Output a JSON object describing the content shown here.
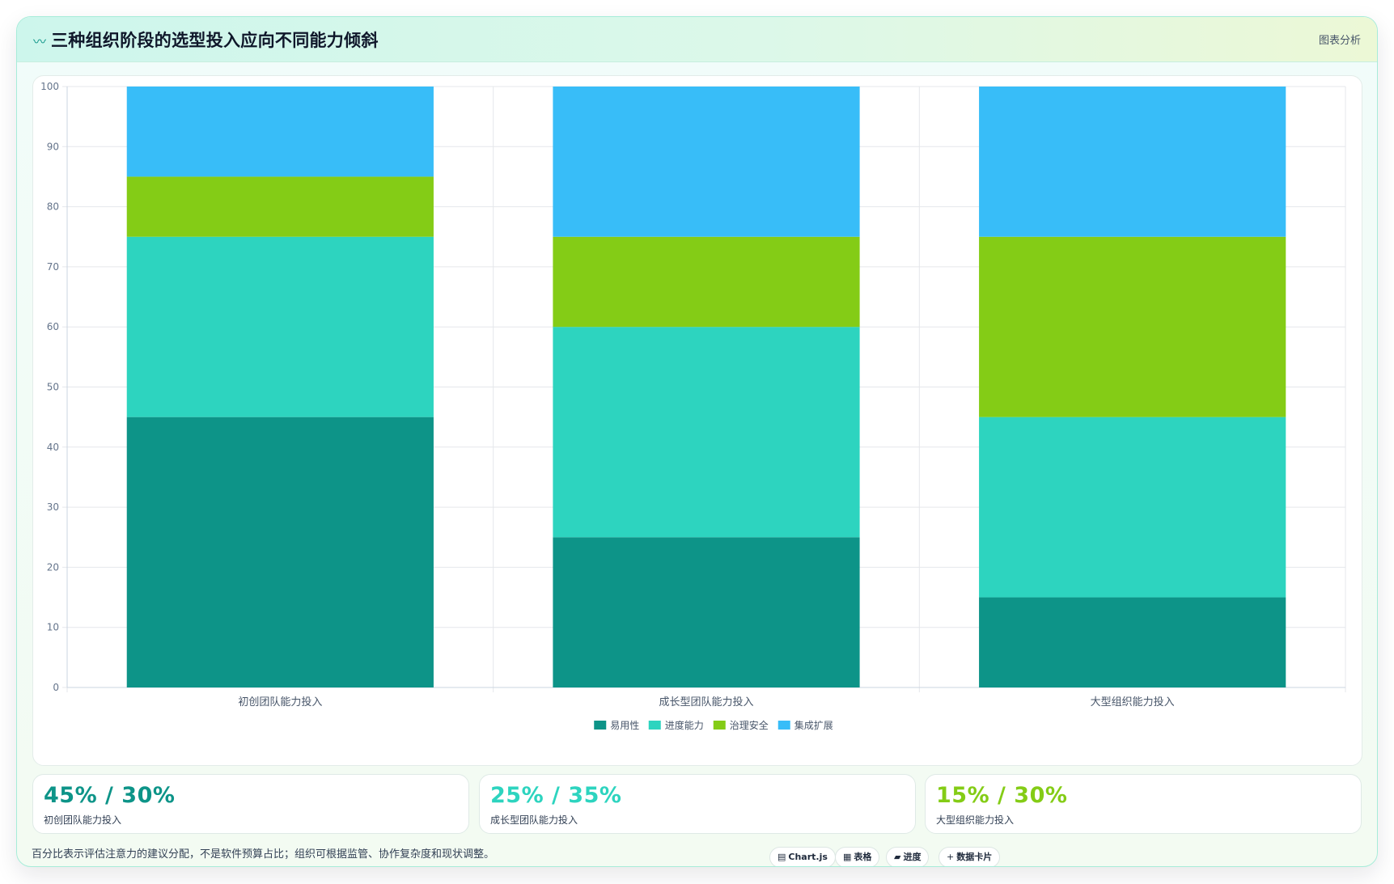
{
  "header": {
    "icon": "wave-icon",
    "title": "三种组织阶段的选型投入应向不同能力倾斜",
    "tag": "图表分析"
  },
  "chart_data": {
    "type": "bar",
    "stacked": true,
    "categories": [
      "初创团队能力投入",
      "成长型团队能力投入",
      "大型组织能力投入"
    ],
    "series": [
      {
        "name": "易用性",
        "color": "#0d9488",
        "values": [
          45,
          25,
          15
        ]
      },
      {
        "name": "进度能力",
        "color": "#2dd4bf",
        "values": [
          30,
          35,
          30
        ]
      },
      {
        "name": "治理安全",
        "color": "#84cc16",
        "values": [
          10,
          15,
          30
        ]
      },
      {
        "name": "集成扩展",
        "color": "#38bdf8",
        "values": [
          15,
          25,
          25
        ]
      }
    ],
    "ylim": [
      0,
      100
    ],
    "yticks": [
      0,
      10,
      20,
      30,
      40,
      50,
      60,
      70,
      80,
      90,
      100
    ],
    "grid": true,
    "legend": "bottom"
  },
  "stats": [
    {
      "value": "45% / 30%",
      "label": "初创团队能力投入",
      "color": "#0d9488"
    },
    {
      "value": "25% / 35%",
      "label": "成长型团队能力投入",
      "color": "#2dd4bf"
    },
    {
      "value": "15% / 30%",
      "label": "大型组织能力投入",
      "color": "#84cc16"
    }
  ],
  "footer": {
    "note": "百分比表示评估注意力的建议分配，不是软件预算占比；组织可根据监管、协作复杂度和现状调整。",
    "chips": [
      {
        "icon": "chart-icon",
        "glyph": "▤",
        "label": "Chart.js"
      },
      {
        "icon": "table-icon",
        "glyph": "▦",
        "label": "表格"
      },
      {
        "icon": "progress-icon",
        "glyph": "▰",
        "label": "进度"
      },
      {
        "icon": "plus-icon",
        "glyph": "+",
        "label": "数据卡片"
      }
    ]
  }
}
